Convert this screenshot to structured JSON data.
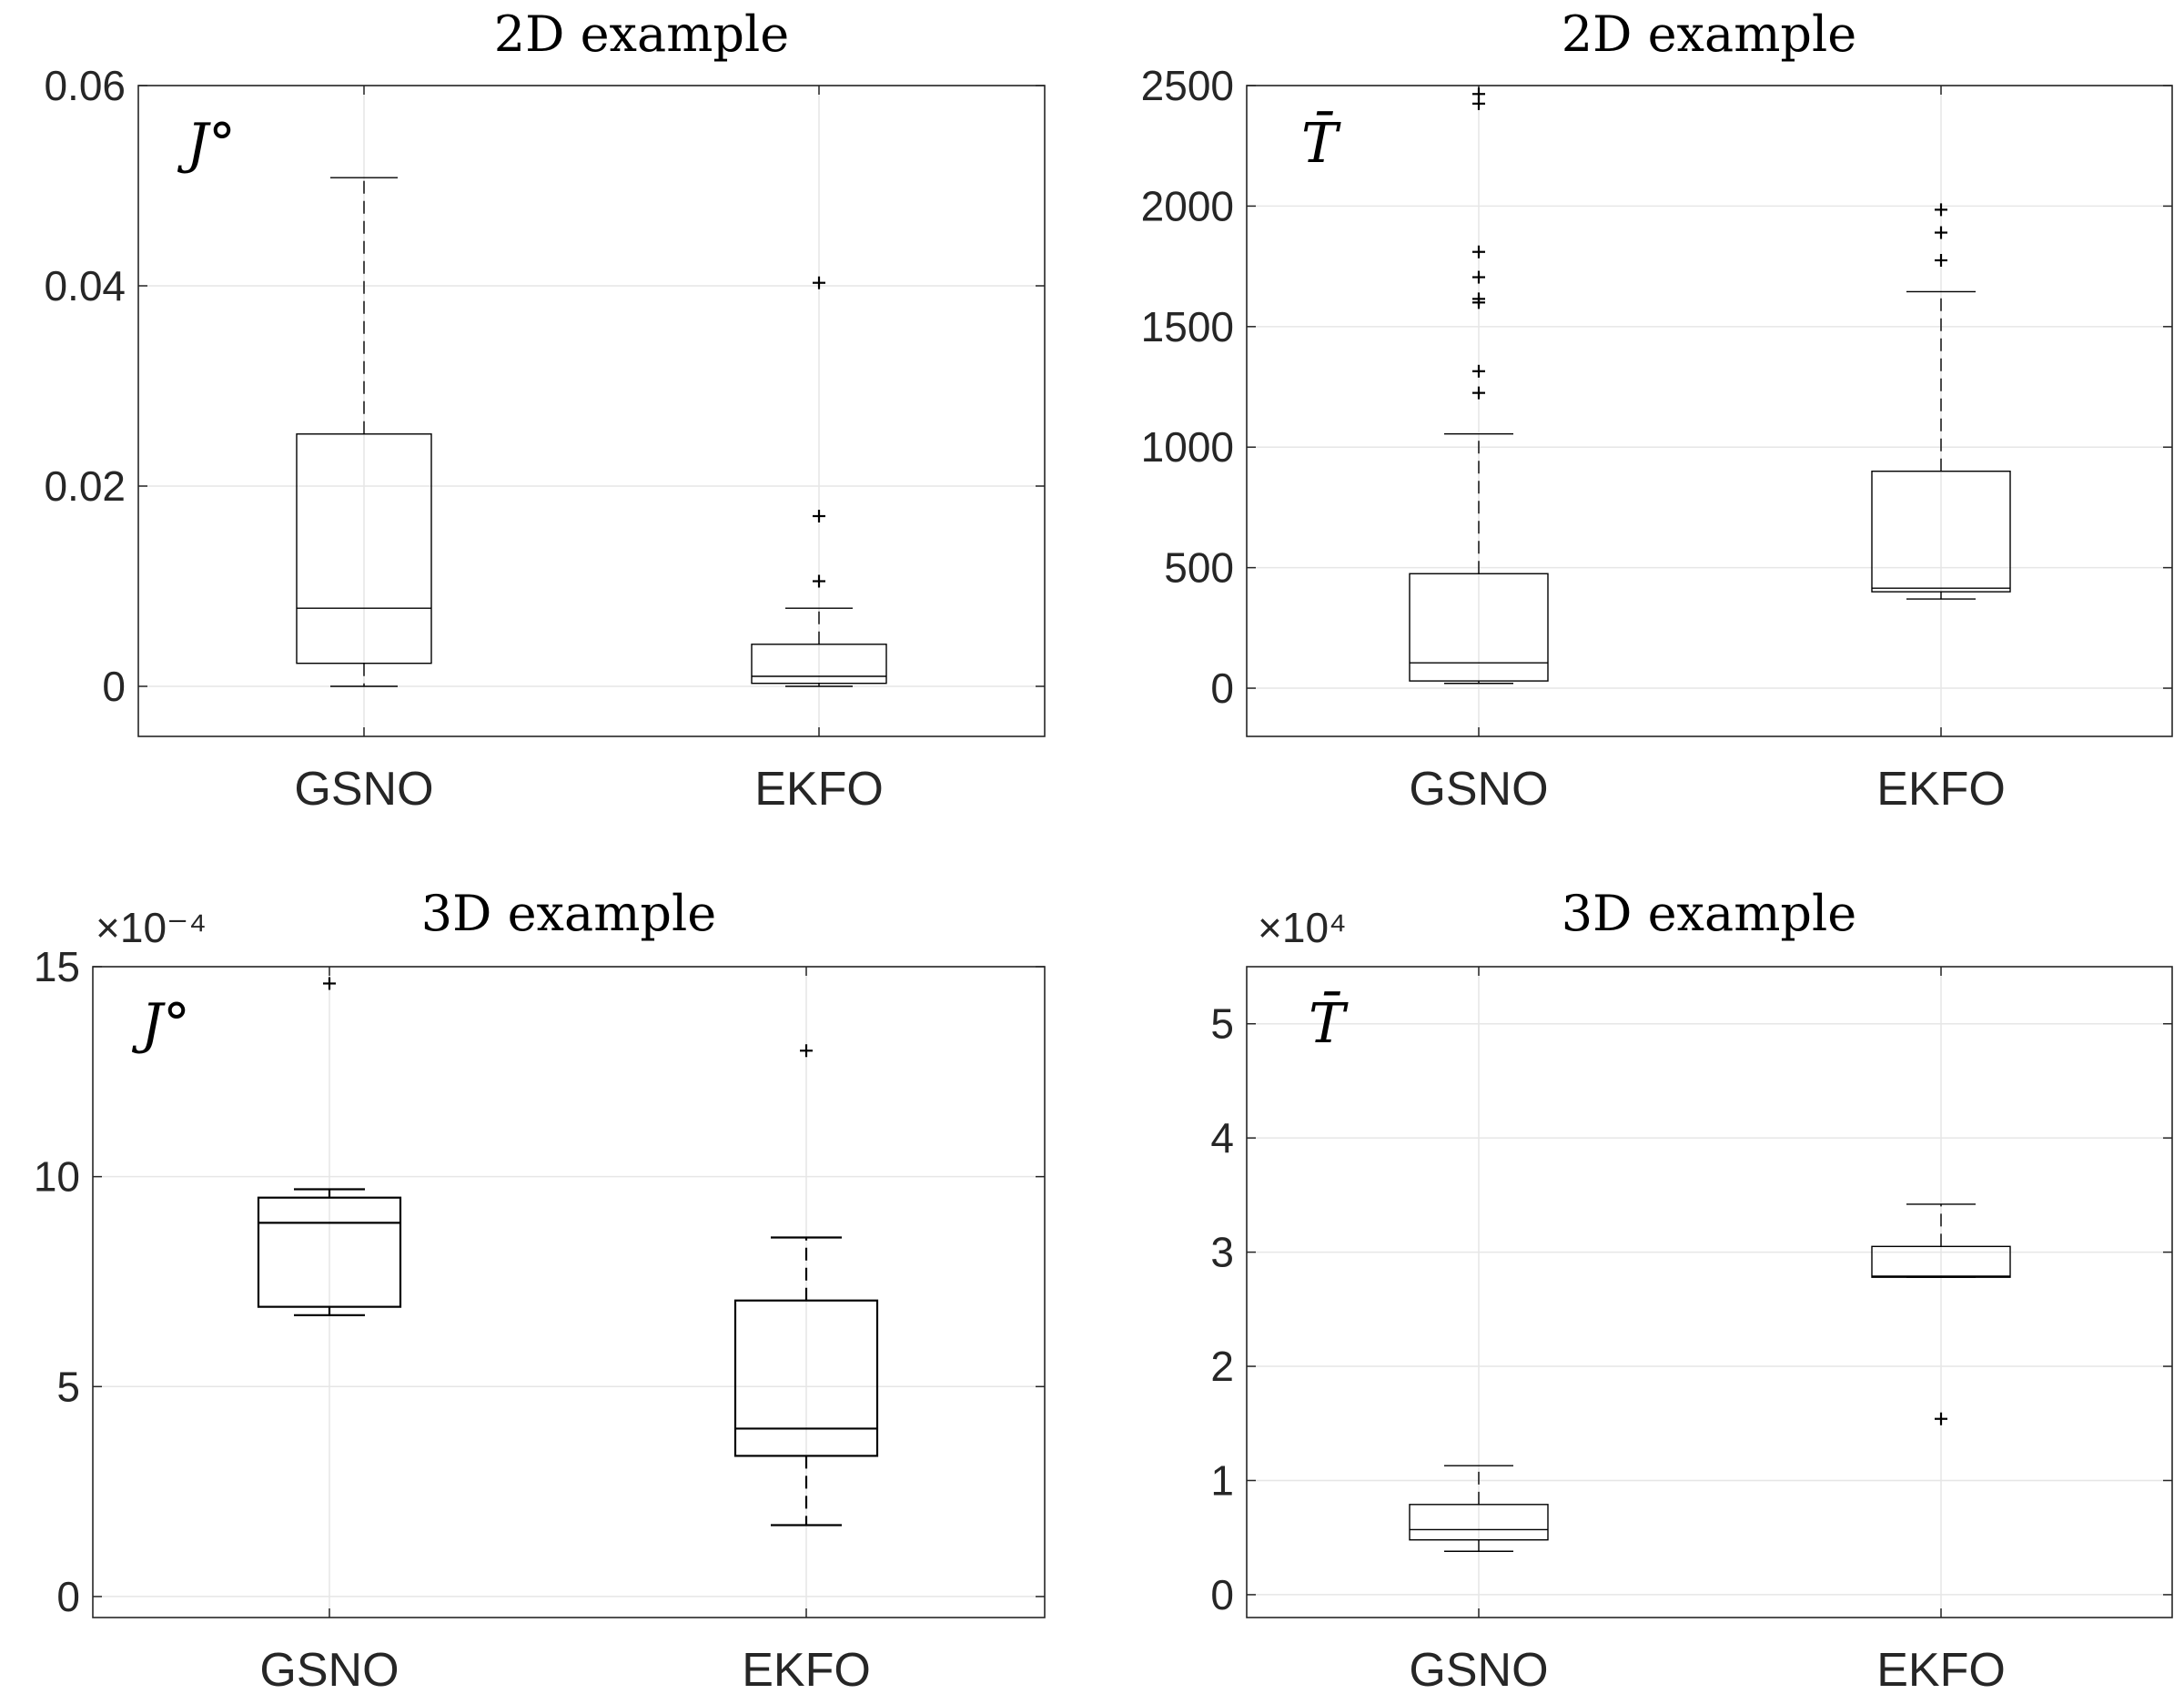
{
  "chart_data": [
    {
      "type": "box",
      "title": "2D example",
      "ylabel_annotation": "J°",
      "ylim": [
        -0.005,
        0.06
      ],
      "yticks": [
        0,
        0.02,
        0.04,
        0.06
      ],
      "ytick_labels": [
        "0",
        "0.02",
        "0.04",
        "0.06"
      ],
      "exponent_label": "",
      "grid": true,
      "categories": [
        "GSNO",
        "EKFO"
      ],
      "boxes": [
        {
          "name": "GSNO",
          "whisker_low": 0.0,
          "q1": 0.0023,
          "median": 0.0078,
          "q3": 0.0252,
          "whisker_high": 0.0508,
          "outliers": []
        },
        {
          "name": "EKFO",
          "whisker_low": 0.0,
          "q1": 0.0003,
          "median": 0.001,
          "q3": 0.0042,
          "whisker_high": 0.0078,
          "outliers": [
            0.0105,
            0.017,
            0.0403
          ]
        }
      ]
    },
    {
      "type": "box",
      "title": "2D example",
      "ylabel_annotation": "T̄",
      "ylim": [
        -200,
        2500
      ],
      "yticks": [
        0,
        500,
        1000,
        1500,
        2000,
        2500
      ],
      "ytick_labels": [
        "0",
        "500",
        "1000",
        "1500",
        "2000",
        "2500"
      ],
      "exponent_label": "",
      "grid": true,
      "categories": [
        "GSNO",
        "EKFO"
      ],
      "boxes": [
        {
          "name": "GSNO",
          "whisker_low": 20,
          "q1": 30,
          "median": 105,
          "q3": 475,
          "whisker_high": 1055,
          "outliers": [
            1225,
            1315,
            1600,
            1615,
            1705,
            1810,
            2425,
            2465
          ]
        },
        {
          "name": "EKFO",
          "whisker_low": 370,
          "q1": 400,
          "median": 415,
          "q3": 900,
          "whisker_high": 1645,
          "outliers": [
            1775,
            1890,
            1985
          ]
        }
      ]
    },
    {
      "type": "box",
      "title": "3D example",
      "ylabel_annotation": "J°",
      "ylim": [
        -0.5,
        15
      ],
      "yticks": [
        0,
        5,
        10,
        15
      ],
      "ytick_labels": [
        "0",
        "5",
        "10",
        "15"
      ],
      "exponent_label": "×10⁻⁴",
      "grid": true,
      "categories": [
        "GSNO",
        "EKFO"
      ],
      "boxes": [
        {
          "name": "GSNO",
          "whisker_low": 6.7,
          "q1": 6.9,
          "median": 8.9,
          "q3": 9.5,
          "whisker_high": 9.7,
          "outliers": [
            14.6
          ]
        },
        {
          "name": "EKFO",
          "whisker_low": 1.7,
          "q1": 3.35,
          "median": 4.0,
          "q3": 7.05,
          "whisker_high": 8.55,
          "outliers": [
            13.0
          ]
        }
      ]
    },
    {
      "type": "box",
      "title": "3D example",
      "ylabel_annotation": "T̄",
      "ylim": [
        -0.2,
        5.5
      ],
      "yticks": [
        0,
        1,
        2,
        3,
        4,
        5
      ],
      "ytick_labels": [
        "0",
        "1",
        "2",
        "3",
        "4",
        "5"
      ],
      "exponent_label": "×10⁴",
      "grid": true,
      "categories": [
        "GSNO",
        "EKFO"
      ],
      "boxes": [
        {
          "name": "GSNO",
          "whisker_low": 0.38,
          "q1": 0.48,
          "median": 0.57,
          "q3": 0.79,
          "whisker_high": 1.13,
          "outliers": []
        },
        {
          "name": "EKFO",
          "whisker_low": 2.78,
          "q1": 2.78,
          "median": 2.79,
          "q3": 3.05,
          "whisker_high": 3.42,
          "outliers": [
            1.54
          ]
        }
      ]
    }
  ]
}
